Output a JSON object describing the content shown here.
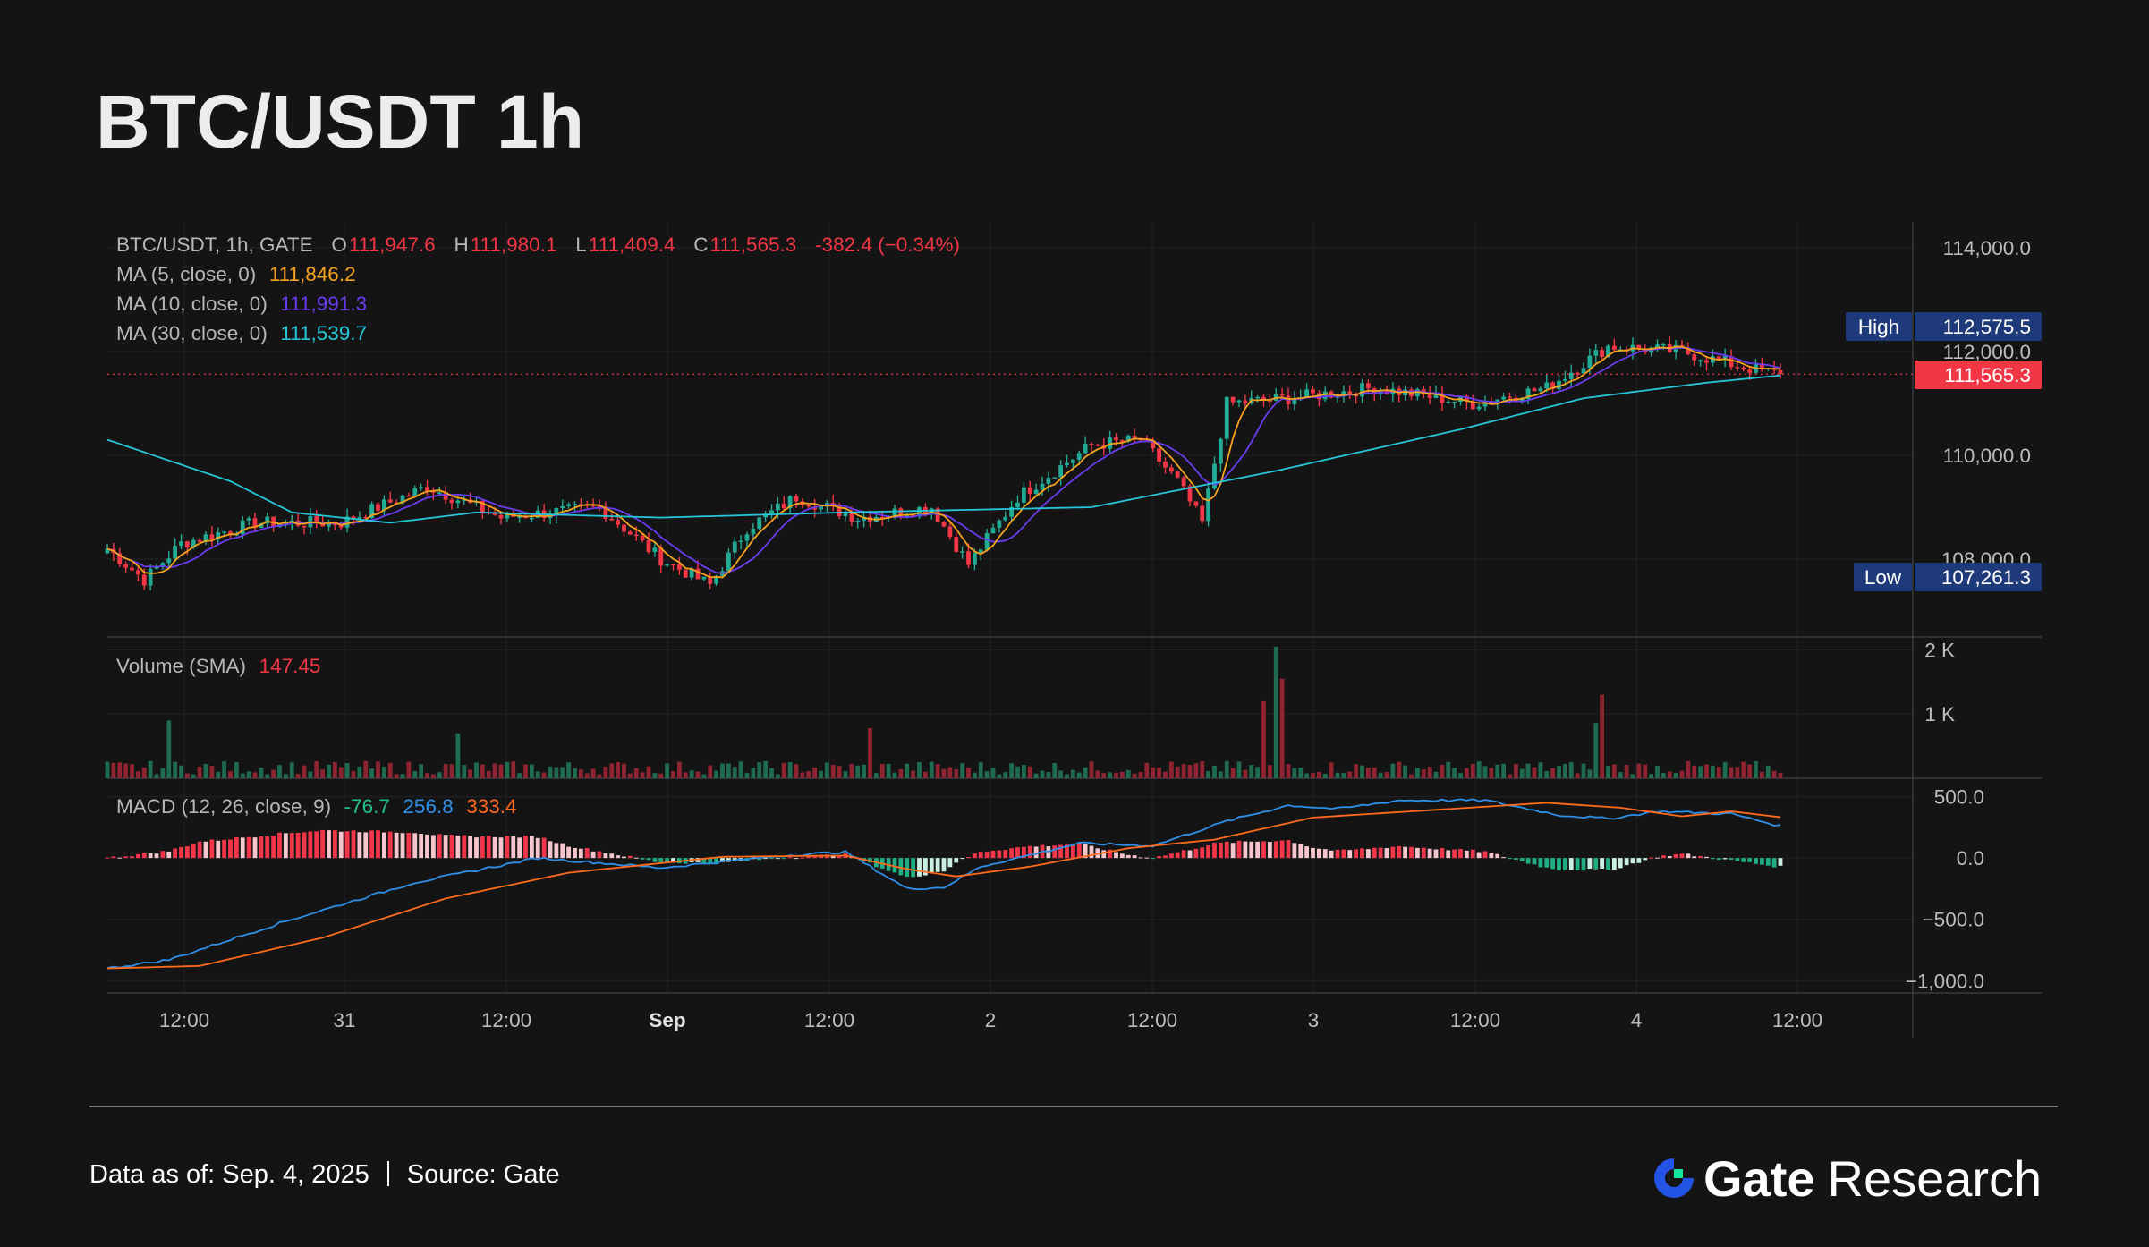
{
  "title": "BTC/USDT 1h",
  "legend": {
    "symbol": "BTC/USDT, 1h, GATE",
    "open_label": "O",
    "open": "111,947.6",
    "high_label": "H",
    "high": "111,980.1",
    "low_label": "L",
    "low": "111,409.4",
    "close_label": "C",
    "close": "111,565.3",
    "change": "-382.4 (−0.34%)",
    "ma5_label": "MA (5, close, 0)",
    "ma5": "111,846.2",
    "ma10_label": "MA (10, close, 0)",
    "ma10": "111,991.3",
    "ma30_label": "MA (30, close, 0)",
    "ma30": "111,539.7",
    "volume_label": "Volume (SMA)",
    "volume": "147.45",
    "macd_label": "MACD (12, 26, close, 9)",
    "macd_hist": "-76.7",
    "macd_line": "256.8",
    "macd_signal": "333.4"
  },
  "price_axis": {
    "ticks": [
      "114,000.0",
      "112,000.0",
      "110,000.0",
      "108,000.0"
    ],
    "tick_values": [
      114000,
      112000,
      110000,
      108000
    ]
  },
  "badges": {
    "high_label": "High",
    "high_value": "112,575.5",
    "low_label": "Low",
    "low_value": "107,261.3",
    "last_value": "111,565.3"
  },
  "volume_axis": {
    "ticks": [
      "2 K",
      "1 K"
    ],
    "tick_values": [
      2000,
      1000
    ]
  },
  "macd_axis": {
    "ticks": [
      "500.0",
      "0.0",
      "−500.0",
      "−1,000.0"
    ],
    "tick_values": [
      500,
      0,
      -500,
      -1000
    ]
  },
  "time_axis": {
    "labels": [
      "12:00",
      "31",
      "12:00",
      "Sep",
      "12:00",
      "2",
      "12:00",
      "3",
      "12:00",
      "4",
      "12:00"
    ],
    "bold_index": 3
  },
  "colors": {
    "up": "#22ab94",
    "down": "#f23645",
    "ma5": "#f7a21b",
    "ma10": "#6b3cf0",
    "ma30": "#26c6da",
    "macd": "#2e8fe8",
    "signal": "#ff6b1a",
    "background": "#141414"
  },
  "footer": {
    "data_as_of": "Data as of: Sep. 4, 2025",
    "source": "Source: Gate",
    "brand_gate": "Gate",
    "brand_research": "Research"
  },
  "chart_data": {
    "type": "candlestick",
    "timeframe": "1h",
    "x_range": [
      "Aug 30 ~02:00",
      "Sep 4 ~09:00"
    ],
    "price": {
      "ylim": [
        106500,
        114500
      ],
      "keypoints": [
        [
          0,
          108200
        ],
        [
          6,
          107600
        ],
        [
          12,
          108300
        ],
        [
          24,
          108700
        ],
        [
          38,
          108700
        ],
        [
          52,
          109400
        ],
        [
          64,
          108800
        ],
        [
          80,
          109000
        ],
        [
          90,
          108000
        ],
        [
          98,
          107500
        ],
        [
          104,
          108600
        ],
        [
          112,
          109200
        ],
        [
          122,
          108800
        ],
        [
          134,
          109000
        ],
        [
          140,
          107900
        ],
        [
          148,
          109200
        ],
        [
          160,
          110200
        ],
        [
          168,
          110300
        ],
        [
          174,
          109500
        ],
        [
          178,
          108700
        ],
        [
          182,
          111000
        ],
        [
          192,
          111100
        ],
        [
          206,
          111300
        ],
        [
          222,
          111000
        ],
        [
          234,
          111300
        ],
        [
          244,
          112100
        ],
        [
          256,
          112000
        ],
        [
          266,
          111700
        ],
        [
          272,
          111565
        ]
      ],
      "high": 112575.5,
      "low": 107261.3,
      "last_close": 111565.3
    },
    "ma30_keypoints": [
      [
        0,
        110300
      ],
      [
        20,
        109500
      ],
      [
        30,
        108900
      ],
      [
        46,
        108700
      ],
      [
        60,
        108900
      ],
      [
        90,
        108800
      ],
      [
        120,
        108900
      ],
      [
        160,
        109000
      ],
      [
        190,
        109700
      ],
      [
        220,
        110500
      ],
      [
        240,
        111100
      ],
      [
        260,
        111400
      ],
      [
        272,
        111540
      ]
    ],
    "volume": {
      "ylim": [
        0,
        2200
      ],
      "typical": 150,
      "spikes": [
        [
          10,
          900
        ],
        [
          57,
          700
        ],
        [
          124,
          780
        ],
        [
          188,
          1200
        ],
        [
          190,
          2050
        ],
        [
          191,
          1550
        ],
        [
          242,
          860
        ],
        [
          243,
          1300
        ]
      ]
    },
    "macd": {
      "ylim": [
        -1100,
        650
      ],
      "macd_keypoints": [
        [
          0,
          -900
        ],
        [
          10,
          -830
        ],
        [
          30,
          -500
        ],
        [
          50,
          -200
        ],
        [
          70,
          0
        ],
        [
          90,
          -80
        ],
        [
          110,
          20
        ],
        [
          120,
          50
        ],
        [
          130,
          -250
        ],
        [
          136,
          -240
        ],
        [
          142,
          -70
        ],
        [
          158,
          120
        ],
        [
          170,
          100
        ],
        [
          182,
          300
        ],
        [
          192,
          430
        ],
        [
          200,
          400
        ],
        [
          210,
          470
        ],
        [
          224,
          470
        ],
        [
          236,
          350
        ],
        [
          244,
          320
        ],
        [
          252,
          380
        ],
        [
          264,
          360
        ],
        [
          272,
          260
        ]
      ],
      "signal_keypoints": [
        [
          0,
          -900
        ],
        [
          15,
          -880
        ],
        [
          35,
          -650
        ],
        [
          55,
          -330
        ],
        [
          75,
          -120
        ],
        [
          100,
          10
        ],
        [
          120,
          20
        ],
        [
          130,
          -90
        ],
        [
          138,
          -150
        ],
        [
          150,
          -70
        ],
        [
          166,
          80
        ],
        [
          180,
          150
        ],
        [
          196,
          330
        ],
        [
          212,
          380
        ],
        [
          234,
          450
        ],
        [
          246,
          410
        ],
        [
          256,
          340
        ],
        [
          264,
          380
        ],
        [
          272,
          333
        ]
      ],
      "last": {
        "histogram": -76.7,
        "macd": 256.8,
        "signal": 333.4
      }
    }
  }
}
